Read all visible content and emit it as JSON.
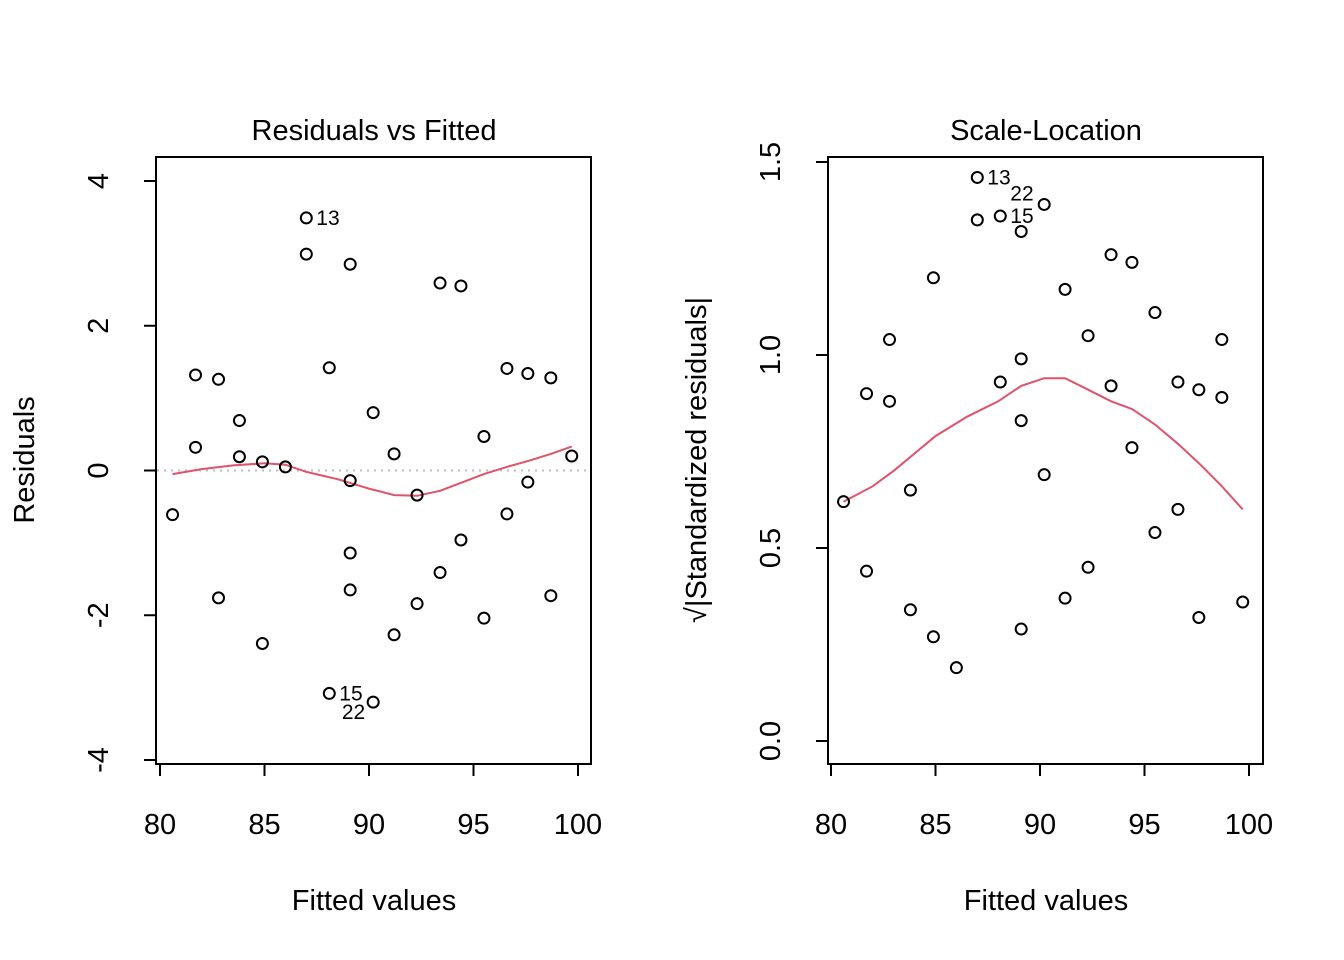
{
  "chart_data": [
    {
      "type": "scatter",
      "title": "Residuals vs Fitted",
      "xlabel": "Fitted values",
      "ylabel": "Residuals",
      "xlim": [
        80,
        100
      ],
      "ylim": [
        -4,
        4
      ],
      "xticks": [
        80,
        85,
        90,
        95,
        100
      ],
      "yticks": [
        -4,
        -2,
        0,
        2,
        4
      ],
      "colors": {
        "smooth": "#DF536B",
        "reference": "#BEBEBE",
        "points": "#000000"
      },
      "reference_line_y": 0,
      "points": [
        {
          "x": 80.6,
          "y": -0.61
        },
        {
          "x": 81.7,
          "y": 1.32
        },
        {
          "x": 81.7,
          "y": 0.32
        },
        {
          "x": 82.8,
          "y": 1.26
        },
        {
          "x": 82.8,
          "y": -1.76
        },
        {
          "x": 83.8,
          "y": 0.69
        },
        {
          "x": 83.8,
          "y": 0.19
        },
        {
          "x": 84.9,
          "y": 0.12
        },
        {
          "x": 84.9,
          "y": -2.39
        },
        {
          "x": 86.0,
          "y": 0.05
        },
        {
          "x": 87.0,
          "y": 3.49,
          "label": "13"
        },
        {
          "x": 87.0,
          "y": 2.99
        },
        {
          "x": 88.1,
          "y": 1.42
        },
        {
          "x": 88.1,
          "y": -3.08,
          "label": "15"
        },
        {
          "x": 89.1,
          "y": 2.85
        },
        {
          "x": 89.1,
          "y": -0.14
        },
        {
          "x": 89.1,
          "y": -1.14
        },
        {
          "x": 89.1,
          "y": -1.65
        },
        {
          "x": 90.2,
          "y": 0.8
        },
        {
          "x": 90.2,
          "y": -3.2,
          "label": "22"
        },
        {
          "x": 91.2,
          "y": 0.23
        },
        {
          "x": 91.2,
          "y": -2.27
        },
        {
          "x": 92.3,
          "y": -0.34
        },
        {
          "x": 92.3,
          "y": -1.84
        },
        {
          "x": 93.4,
          "y": 2.59
        },
        {
          "x": 93.4,
          "y": -1.41
        },
        {
          "x": 94.4,
          "y": 2.55
        },
        {
          "x": 94.4,
          "y": -0.96
        },
        {
          "x": 95.5,
          "y": 0.47
        },
        {
          "x": 95.5,
          "y": -2.04
        },
        {
          "x": 96.6,
          "y": 1.41
        },
        {
          "x": 96.6,
          "y": -0.6
        },
        {
          "x": 97.6,
          "y": 1.34
        },
        {
          "x": 97.6,
          "y": -0.16
        },
        {
          "x": 98.7,
          "y": 1.28
        },
        {
          "x": 98.7,
          "y": -1.73
        },
        {
          "x": 99.7,
          "y": 0.2
        }
      ],
      "labels": [
        {
          "text": "13",
          "x": 87.0,
          "y": 3.49,
          "pos": "right"
        },
        {
          "text": "15",
          "x": 88.1,
          "y": -3.08,
          "pos": "right"
        },
        {
          "text": "22",
          "x": 90.2,
          "y": -3.2,
          "pos": "left"
        }
      ],
      "smooth": [
        {
          "x": 80.6,
          "y": -0.05
        },
        {
          "x": 82.0,
          "y": 0.02
        },
        {
          "x": 83.5,
          "y": 0.07
        },
        {
          "x": 85.0,
          "y": 0.1
        },
        {
          "x": 86.0,
          "y": 0.08
        },
        {
          "x": 87.0,
          "y": -0.02
        },
        {
          "x": 88.5,
          "y": -0.12
        },
        {
          "x": 90.0,
          "y": -0.25
        },
        {
          "x": 91.2,
          "y": -0.34
        },
        {
          "x": 92.3,
          "y": -0.35
        },
        {
          "x": 93.4,
          "y": -0.28
        },
        {
          "x": 94.4,
          "y": -0.17
        },
        {
          "x": 95.5,
          "y": -0.05
        },
        {
          "x": 96.6,
          "y": 0.05
        },
        {
          "x": 97.6,
          "y": 0.13
        },
        {
          "x": 98.7,
          "y": 0.23
        },
        {
          "x": 99.7,
          "y": 0.33
        }
      ]
    },
    {
      "type": "scatter",
      "title": "Scale-Location",
      "xlabel": "Fitted values",
      "ylabel": "√|Standardized residuals|",
      "xlim": [
        80,
        100
      ],
      "ylim": [
        0,
        1.5
      ],
      "xticks": [
        80,
        85,
        90,
        95,
        100
      ],
      "yticks": [
        0.0,
        0.5,
        1.0,
        1.5
      ],
      "ytick_labels": [
        "0.0",
        "0.5",
        "1.0",
        "1.5"
      ],
      "colors": {
        "smooth": "#DF536B",
        "points": "#000000"
      },
      "points": [
        {
          "x": 80.6,
          "y": 0.62
        },
        {
          "x": 81.7,
          "y": 0.9
        },
        {
          "x": 81.7,
          "y": 0.44
        },
        {
          "x": 82.8,
          "y": 1.04
        },
        {
          "x": 82.8,
          "y": 0.88
        },
        {
          "x": 83.8,
          "y": 0.65
        },
        {
          "x": 83.8,
          "y": 0.34
        },
        {
          "x": 84.9,
          "y": 1.2
        },
        {
          "x": 84.9,
          "y": 0.27
        },
        {
          "x": 86.0,
          "y": 0.19
        },
        {
          "x": 87.0,
          "y": 1.46,
          "label": "13"
        },
        {
          "x": 87.0,
          "y": 1.35
        },
        {
          "x": 88.1,
          "y": 1.36
        },
        {
          "x": 88.1,
          "y": 0.93
        },
        {
          "x": 89.1,
          "y": 1.32
        },
        {
          "x": 89.1,
          "y": 0.99
        },
        {
          "x": 89.1,
          "y": 0.83
        },
        {
          "x": 89.1,
          "y": 0.29
        },
        {
          "x": 90.2,
          "y": 1.39
        },
        {
          "x": 90.2,
          "y": 0.69
        },
        {
          "x": 91.2,
          "y": 1.17
        },
        {
          "x": 91.2,
          "y": 0.37
        },
        {
          "x": 92.3,
          "y": 1.05
        },
        {
          "x": 92.3,
          "y": 0.45
        },
        {
          "x": 93.4,
          "y": 1.26
        },
        {
          "x": 93.4,
          "y": 0.92
        },
        {
          "x": 94.4,
          "y": 1.24
        },
        {
          "x": 94.4,
          "y": 0.76
        },
        {
          "x": 95.5,
          "y": 1.11
        },
        {
          "x": 95.5,
          "y": 0.54
        },
        {
          "x": 96.6,
          "y": 0.93
        },
        {
          "x": 96.6,
          "y": 0.6
        },
        {
          "x": 97.6,
          "y": 0.91
        },
        {
          "x": 97.6,
          "y": 0.32
        },
        {
          "x": 98.7,
          "y": 1.04
        },
        {
          "x": 98.7,
          "y": 0.89
        },
        {
          "x": 99.7,
          "y": 0.36
        }
      ],
      "labels": [
        {
          "text": "13",
          "x": 87.0,
          "y": 1.46,
          "pos": "right"
        },
        {
          "text": "22",
          "x": 88.1,
          "y": 1.39,
          "pos": "right-up"
        },
        {
          "text": "15",
          "x": 88.1,
          "y": 1.36,
          "pos": "right"
        }
      ],
      "smooth": [
        {
          "x": 80.6,
          "y": 0.62
        },
        {
          "x": 82.0,
          "y": 0.66
        },
        {
          "x": 83.0,
          "y": 0.7
        },
        {
          "x": 85.0,
          "y": 0.79
        },
        {
          "x": 86.5,
          "y": 0.84
        },
        {
          "x": 88.0,
          "y": 0.88
        },
        {
          "x": 89.1,
          "y": 0.92
        },
        {
          "x": 90.2,
          "y": 0.94
        },
        {
          "x": 91.2,
          "y": 0.94
        },
        {
          "x": 92.3,
          "y": 0.91
        },
        {
          "x": 93.4,
          "y": 0.88
        },
        {
          "x": 94.4,
          "y": 0.86
        },
        {
          "x": 95.5,
          "y": 0.82
        },
        {
          "x": 96.6,
          "y": 0.77
        },
        {
          "x": 97.6,
          "y": 0.72
        },
        {
          "x": 98.7,
          "y": 0.66
        },
        {
          "x": 99.7,
          "y": 0.6
        }
      ]
    }
  ]
}
